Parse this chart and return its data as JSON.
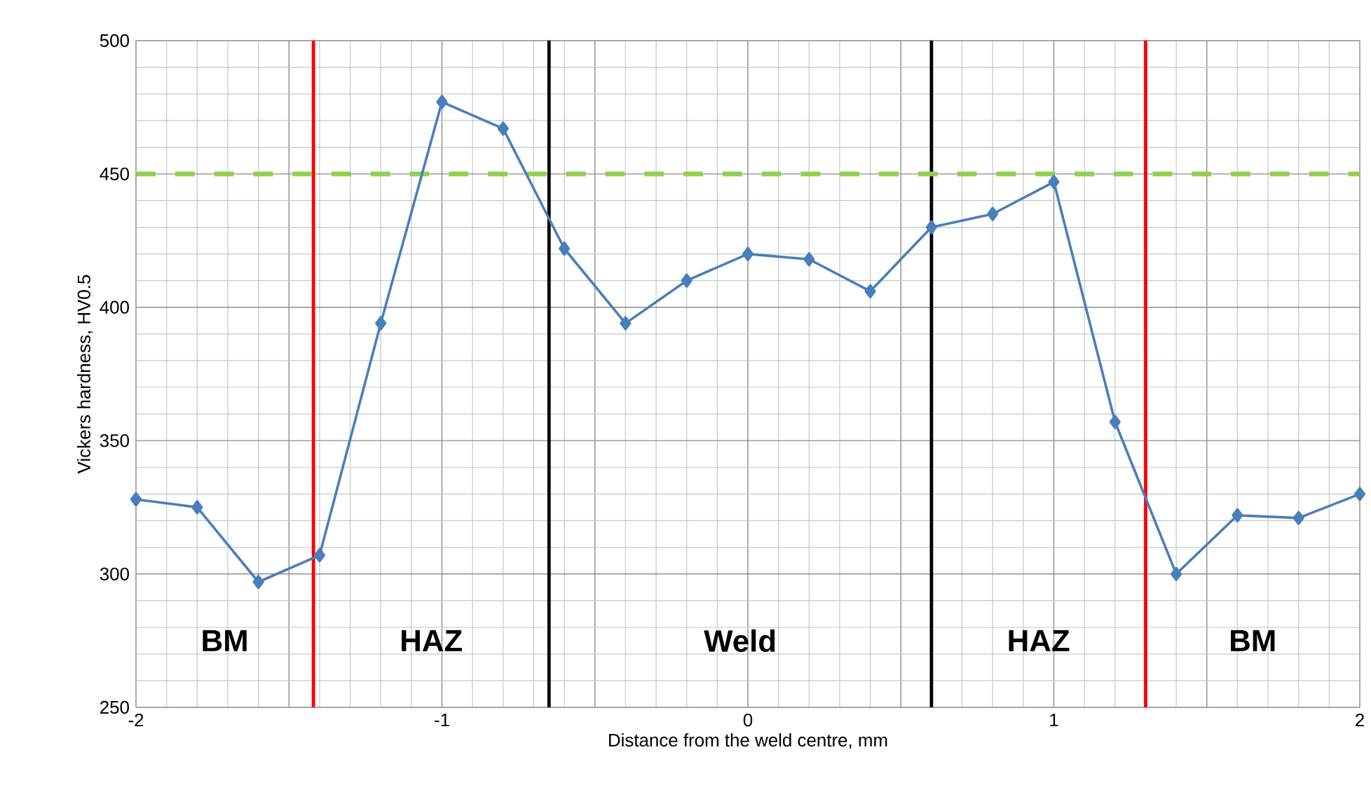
{
  "chart_data": {
    "type": "line",
    "xlabel": "Distance from the weld centre, mm",
    "ylabel": "Vickers hardness, HV0.5",
    "series": [
      {
        "color": "#4a7ebb",
        "x": [
          -2,
          -1.8,
          -1.6,
          -1.4,
          -1.2,
          -1,
          -0.8,
          -0.6,
          -0.4,
          -0.2,
          0,
          0.2,
          0.4,
          0.6,
          0.8,
          1,
          1.2,
          1.4,
          1.6,
          1.8,
          2
        ],
        "values": [
          328,
          325,
          297,
          307,
          394,
          477,
          467,
          422,
          394,
          410,
          420,
          418,
          406,
          430,
          435,
          447,
          357,
          300,
          322,
          321,
          330
        ]
      }
    ],
    "marker": "diamond",
    "line_style": "solid",
    "grid": true,
    "xlim": [
      -2,
      2
    ],
    "ylim": [
      250,
      500
    ],
    "xticks": [
      -2,
      {
        "value": -1.5,
        "label": null
      },
      -1,
      {
        "value": -0.5,
        "label": null
      },
      0,
      {
        "value": 0.5,
        "label": null
      },
      1,
      {
        "value": 1.5,
        "label": null
      },
      2
    ],
    "yticks": [
      250,
      300,
      350,
      400,
      450,
      500
    ],
    "ref_lines": [
      {
        "axis": "x",
        "value": -1.42,
        "color": "#ff0000"
      },
      {
        "axis": "x",
        "value": -0.65,
        "color": "#000000"
      },
      {
        "axis": "x",
        "value": 0.6,
        "color": "#000000"
      },
      {
        "axis": "x",
        "value": 1.3,
        "color": "#ff0000"
      },
      {
        "axis": "y",
        "value": 450,
        "color": "#92d050",
        "line_style": "dashed"
      }
    ],
    "annotations": [
      "BM",
      "HAZ",
      "Weld",
      "HAZ",
      "BM"
    ]
  }
}
